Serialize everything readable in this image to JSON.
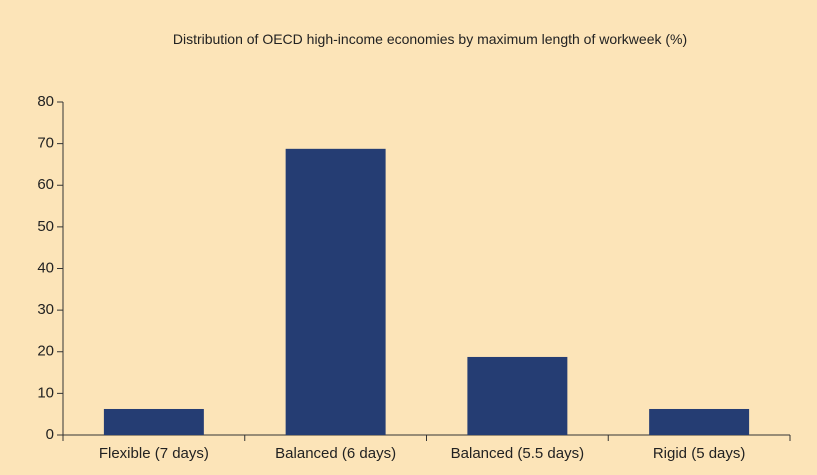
{
  "chart_data": {
    "type": "bar",
    "title": "Distribution of OECD high-income economies by maximum length of workweek (%)",
    "categories": [
      "Flexible (7 days)",
      "Balanced (6 days)",
      "Balanced (5.5 days)",
      "Rigid (5 days)"
    ],
    "values": [
      6.25,
      68.75,
      18.75,
      6.25
    ],
    "color": "#253d73",
    "ylim": [
      0,
      80
    ],
    "yticks": [
      0,
      10,
      20,
      30,
      40,
      50,
      60,
      70,
      80
    ],
    "grid": false
  }
}
